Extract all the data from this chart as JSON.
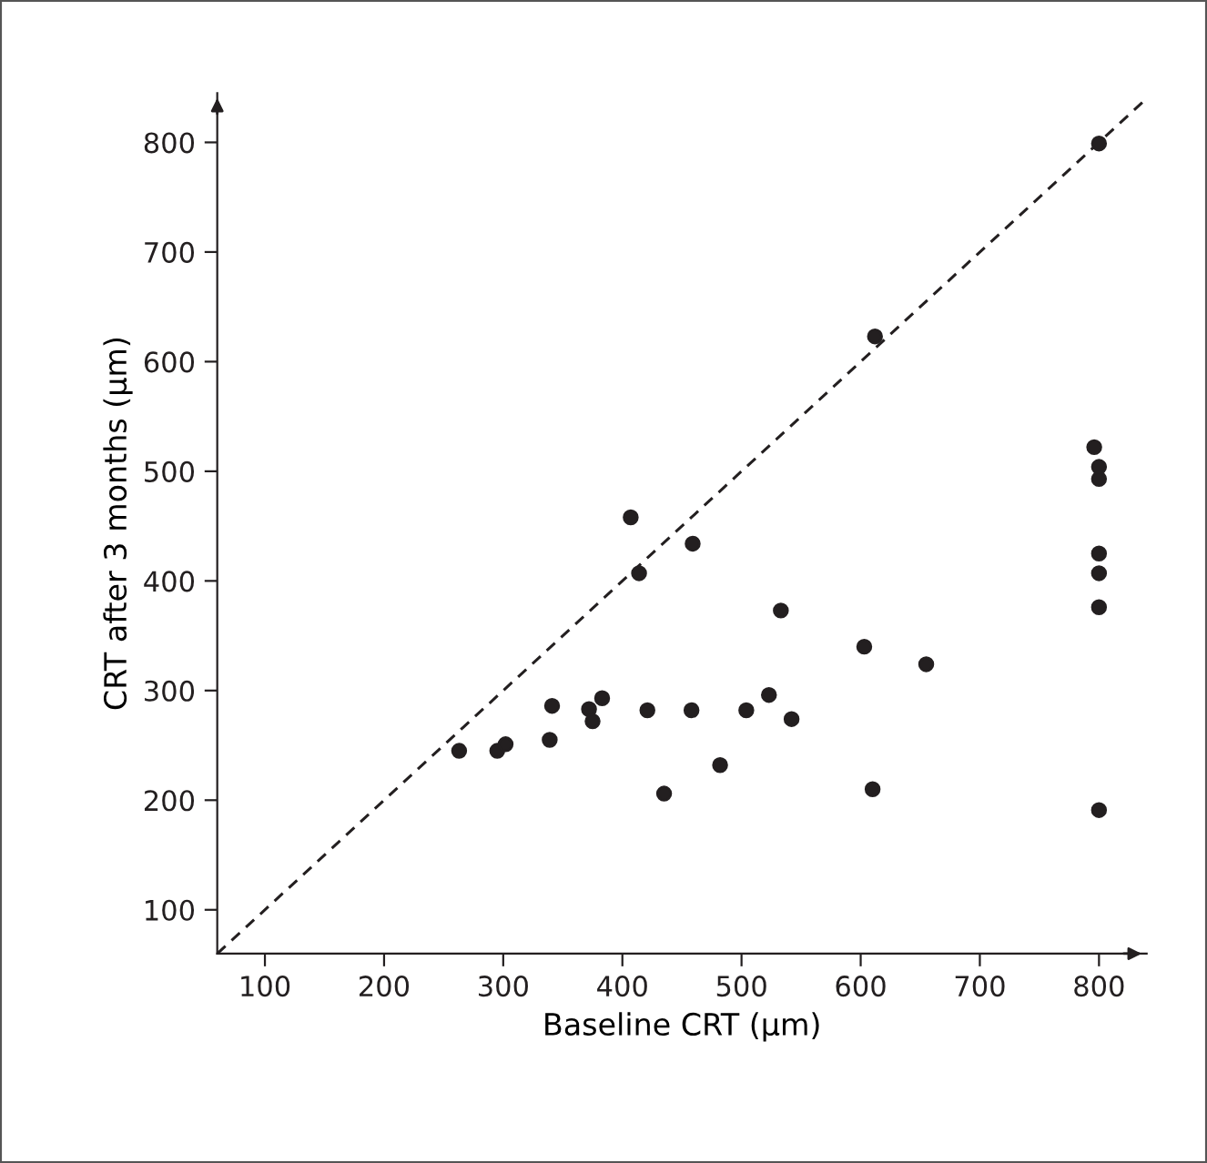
{
  "chart_data": {
    "type": "scatter",
    "xlabel": "Baseline CRT (µm)",
    "ylabel": "CRT after 3 months (µm)",
    "xlim": [
      60,
      840
    ],
    "ylim": [
      60,
      845
    ],
    "xticks": [
      100,
      200,
      300,
      400,
      500,
      600,
      700,
      800
    ],
    "yticks": [
      100,
      200,
      300,
      400,
      500,
      600,
      700,
      800
    ],
    "grid": false,
    "legend": false,
    "marker": "circle",
    "series": [
      {
        "color": "#231f20",
        "x": [
          263,
          295,
          302,
          339,
          341,
          372,
          375,
          383,
          407,
          414,
          421,
          435,
          458,
          459,
          482,
          504,
          523,
          533,
          542,
          603,
          610,
          612,
          655,
          796,
          800,
          800,
          800,
          800,
          800,
          800,
          800
        ],
        "values": [
          245,
          245,
          251,
          255,
          286,
          283,
          272,
          293,
          458,
          407,
          282,
          206,
          282,
          434,
          232,
          282,
          296,
          373,
          274,
          340,
          210,
          623,
          324,
          522,
          504,
          493,
          425,
          407,
          376,
          191,
          799
        ]
      },
      {
        "type": "line",
        "color": "#231f20",
        "line_style": "dashed",
        "marker": "none",
        "x": [
          60,
          840
        ],
        "values": [
          60,
          840
        ]
      }
    ]
  }
}
